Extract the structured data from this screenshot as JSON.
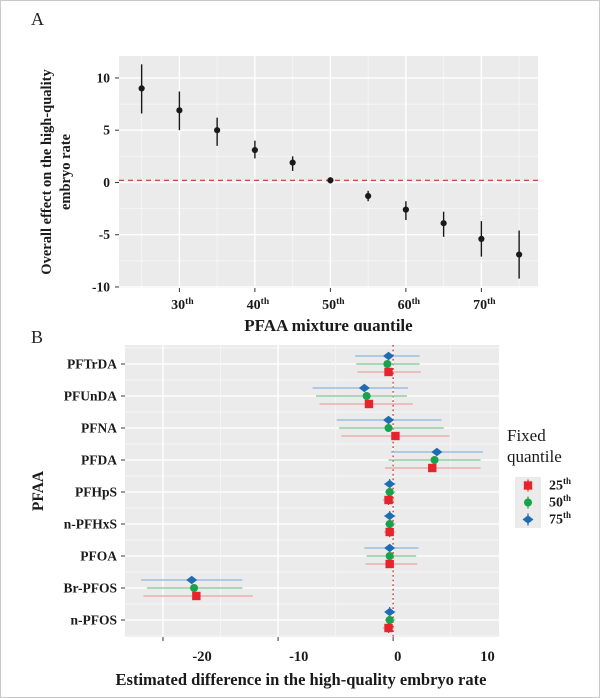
{
  "figure": {
    "panel_a_label": "A",
    "panel_b_label": "B"
  },
  "colors": {
    "panel_background": "#ebebeb",
    "grid_major": "#ffffff",
    "grid_minor": "#f5f5f5",
    "reference_red": "#c0392b",
    "point_black": "#1a1a1a",
    "q25_red": "#e6242b",
    "q25_ci": "#e9a29f",
    "q50_green": "#17a24b",
    "q50_ci": "#82c79a",
    "q75_blue": "#1f6cb5",
    "q75_ci": "#8db4dc"
  },
  "chart_data": [
    {
      "type": "scatter",
      "panel": "A",
      "xlabel": "PFAA mixture quantile",
      "ylabel_line1": "Overall effect on the high-quality",
      "ylabel_line2": "embryo rate",
      "xlim": [
        22,
        77.5
      ],
      "ylim": [
        -10.1,
        12.1
      ],
      "grid": true,
      "x_ticks": [
        {
          "value": 30,
          "label": "30",
          "sup": "th"
        },
        {
          "value": 40,
          "label": "40",
          "sup": "th"
        },
        {
          "value": 50,
          "label": "50",
          "sup": "th"
        },
        {
          "value": 60,
          "label": "60",
          "sup": "th"
        },
        {
          "value": 70,
          "label": "70",
          "sup": "th"
        }
      ],
      "y_ticks": [
        10,
        5,
        0,
        -5,
        -10
      ],
      "reference_line": {
        "y": 0.2,
        "style": "dashed"
      },
      "points": [
        {
          "quantile": 25,
          "estimate": 9.0,
          "ci_low": 6.6,
          "ci_high": 11.3
        },
        {
          "quantile": 30,
          "estimate": 6.9,
          "ci_low": 5.0,
          "ci_high": 8.7
        },
        {
          "quantile": 35,
          "estimate": 5.0,
          "ci_low": 3.5,
          "ci_high": 6.2
        },
        {
          "quantile": 40,
          "estimate": 3.1,
          "ci_low": 2.3,
          "ci_high": 4.0
        },
        {
          "quantile": 45,
          "estimate": 1.9,
          "ci_low": 1.1,
          "ci_high": 2.5
        },
        {
          "quantile": 50,
          "estimate": 0.2,
          "ci_low": -0.1,
          "ci_high": 0.5
        },
        {
          "quantile": 55,
          "estimate": -1.3,
          "ci_low": -1.8,
          "ci_high": -0.8
        },
        {
          "quantile": 60,
          "estimate": -2.6,
          "ci_low": -3.6,
          "ci_high": -1.8
        },
        {
          "quantile": 65,
          "estimate": -3.9,
          "ci_low": -5.2,
          "ci_high": -2.8
        },
        {
          "quantile": 70,
          "estimate": -5.4,
          "ci_low": -7.1,
          "ci_high": -3.7
        },
        {
          "quantile": 75,
          "estimate": -6.9,
          "ci_low": -9.2,
          "ci_high": -4.6
        }
      ]
    },
    {
      "type": "forest",
      "panel": "B",
      "xlabel": "Estimated difference in the high-quality embryo rate",
      "ylabel": "PFAA",
      "xlim": [
        -23.3,
        9.2
      ],
      "grid": true,
      "x_ticks": [
        {
          "value": -20,
          "label": "-20",
          "label_at": -16.6
        },
        {
          "value": -10,
          "label": "-10",
          "label_at": -8.2
        },
        {
          "value": 0,
          "label": "0",
          "label_at": 0.4
        },
        {
          "label": "10",
          "label_at": 8.2,
          "no_tick": true
        }
      ],
      "reference_line": {
        "x": 0,
        "style": "dotted"
      },
      "categories": [
        "PFTrDA",
        "PFUnDA",
        "PFNA",
        "PFDA",
        "PFHpS",
        "n-PFHxS",
        "PFOA",
        "Br-PFOS",
        "n-PFOS"
      ],
      "series": [
        {
          "name": "75",
          "sup": "th",
          "shape": "diamond",
          "color": "#1f6cb5",
          "ci_color": "#8db4dc",
          "row_offset": -8,
          "values": [
            {
              "est": -0.4,
              "lo": -3.3,
              "hi": 2.3
            },
            {
              "est": -2.5,
              "lo": -7.0,
              "hi": 1.3
            },
            {
              "est": -0.4,
              "lo": -4.9,
              "hi": 4.2
            },
            {
              "est": 3.8,
              "lo": -0.2,
              "hi": 7.8
            },
            {
              "est": -0.3,
              "lo": -0.8,
              "hi": 0.2
            },
            {
              "est": -0.3,
              "lo": -0.8,
              "hi": 0.2
            },
            {
              "est": -0.3,
              "lo": -2.5,
              "hi": 2.2
            },
            {
              "est": -17.5,
              "lo": -21.9,
              "hi": -13.1
            },
            {
              "est": -0.3,
              "lo": -0.7,
              "hi": 0.2
            }
          ]
        },
        {
          "name": "50",
          "sup": "th",
          "shape": "circle",
          "color": "#17a24b",
          "ci_color": "#82c79a",
          "row_offset": 0,
          "values": [
            {
              "est": -0.5,
              "lo": -3.2,
              "hi": 2.3
            },
            {
              "est": -2.3,
              "lo": -6.7,
              "hi": 1.2
            },
            {
              "est": -0.4,
              "lo": -4.7,
              "hi": 4.4
            },
            {
              "est": 3.6,
              "lo": -0.4,
              "hi": 7.6
            },
            {
              "est": -0.3,
              "lo": -0.7,
              "hi": 0.2
            },
            {
              "est": -0.3,
              "lo": -0.7,
              "hi": 0.2
            },
            {
              "est": -0.3,
              "lo": -2.3,
              "hi": 2.0
            },
            {
              "est": -17.3,
              "lo": -21.4,
              "hi": -13.1
            },
            {
              "est": -0.3,
              "lo": -0.7,
              "hi": 0.2
            }
          ]
        },
        {
          "name": "25",
          "sup": "th",
          "shape": "square",
          "color": "#e6242b",
          "ci_color": "#e9a29f",
          "row_offset": 8,
          "values": [
            {
              "est": -0.4,
              "lo": -3.1,
              "hi": 2.4
            },
            {
              "est": -2.1,
              "lo": -6.4,
              "hi": 1.7
            },
            {
              "est": 0.2,
              "lo": -4.5,
              "hi": 4.9
            },
            {
              "est": 3.4,
              "lo": -0.7,
              "hi": 7.6
            },
            {
              "est": -0.4,
              "lo": -0.9,
              "hi": 0.1
            },
            {
              "est": -0.3,
              "lo": -0.8,
              "hi": 0.2
            },
            {
              "est": -0.3,
              "lo": -2.4,
              "hi": 2.1
            },
            {
              "est": -17.1,
              "lo": -21.7,
              "hi": -12.2
            },
            {
              "est": -0.4,
              "lo": -0.9,
              "hi": 0.1
            }
          ]
        }
      ],
      "legend": {
        "title_line1": "Fixed",
        "title_line2": "quantile",
        "entries": [
          {
            "label": "25",
            "sup": "th",
            "shape": "square",
            "color": "#e6242b"
          },
          {
            "label": "50",
            "sup": "th",
            "shape": "circle",
            "color": "#17a24b"
          },
          {
            "label": "75",
            "sup": "th",
            "shape": "diamond",
            "color": "#1f6cb5"
          }
        ]
      }
    }
  ]
}
